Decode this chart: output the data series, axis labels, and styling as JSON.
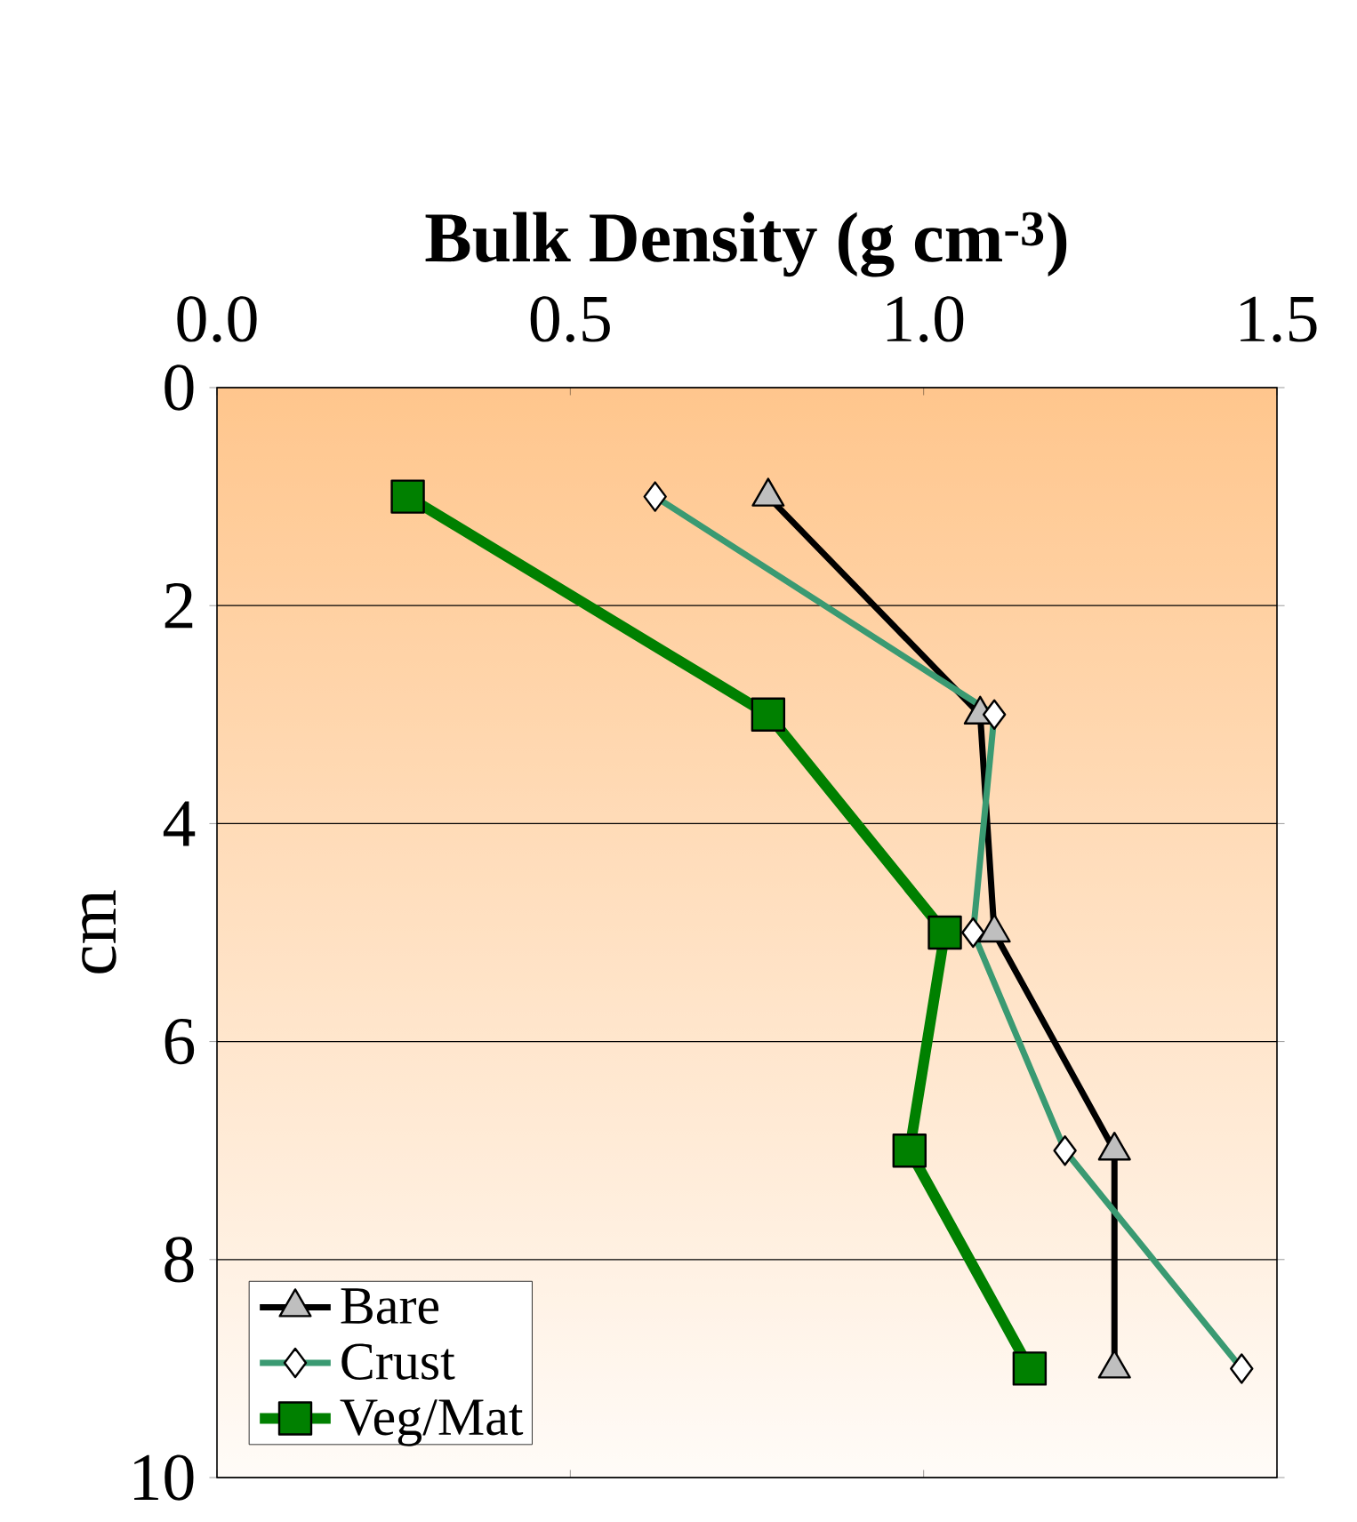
{
  "chart_data": {
    "type": "line",
    "xlabel": "Bulk Density (g cm$^{-3}$)",
    "ylabel": "cm",
    "xlim": [
      0,
      1.5
    ],
    "xticks": [
      {
        "value": 0,
        "label": "0.0"
      },
      {
        "value": 0.5,
        "label": "0.5"
      },
      {
        "value": 1,
        "label": "1.0"
      },
      {
        "value": 1.5,
        "label": "1.5"
      }
    ],
    "ylim": [
      10,
      0
    ],
    "yticks": [
      0,
      2,
      4,
      6,
      8,
      10
    ],
    "grid": "y",
    "legend": "bottom left",
    "series": [
      {
        "name": "Bare",
        "color": "#000000",
        "marker": "triangle",
        "x": [
          0.78,
          1.08,
          1.1,
          1.27,
          1.27
        ],
        "values": [
          1,
          3,
          5,
          7,
          9
        ]
      },
      {
        "name": "Crust",
        "color": "#3a9a72",
        "marker": "diamond",
        "x": [
          0.62,
          1.1,
          1.07,
          1.2,
          1.45
        ],
        "values": [
          1,
          3,
          5,
          7,
          9
        ]
      },
      {
        "name": "Veg/Mat",
        "color": "#008000",
        "marker": "square",
        "x": [
          0.27,
          0.78,
          1.03,
          0.98,
          1.15
        ],
        "values": [
          1,
          3,
          5,
          7,
          9
        ]
      }
    ]
  }
}
